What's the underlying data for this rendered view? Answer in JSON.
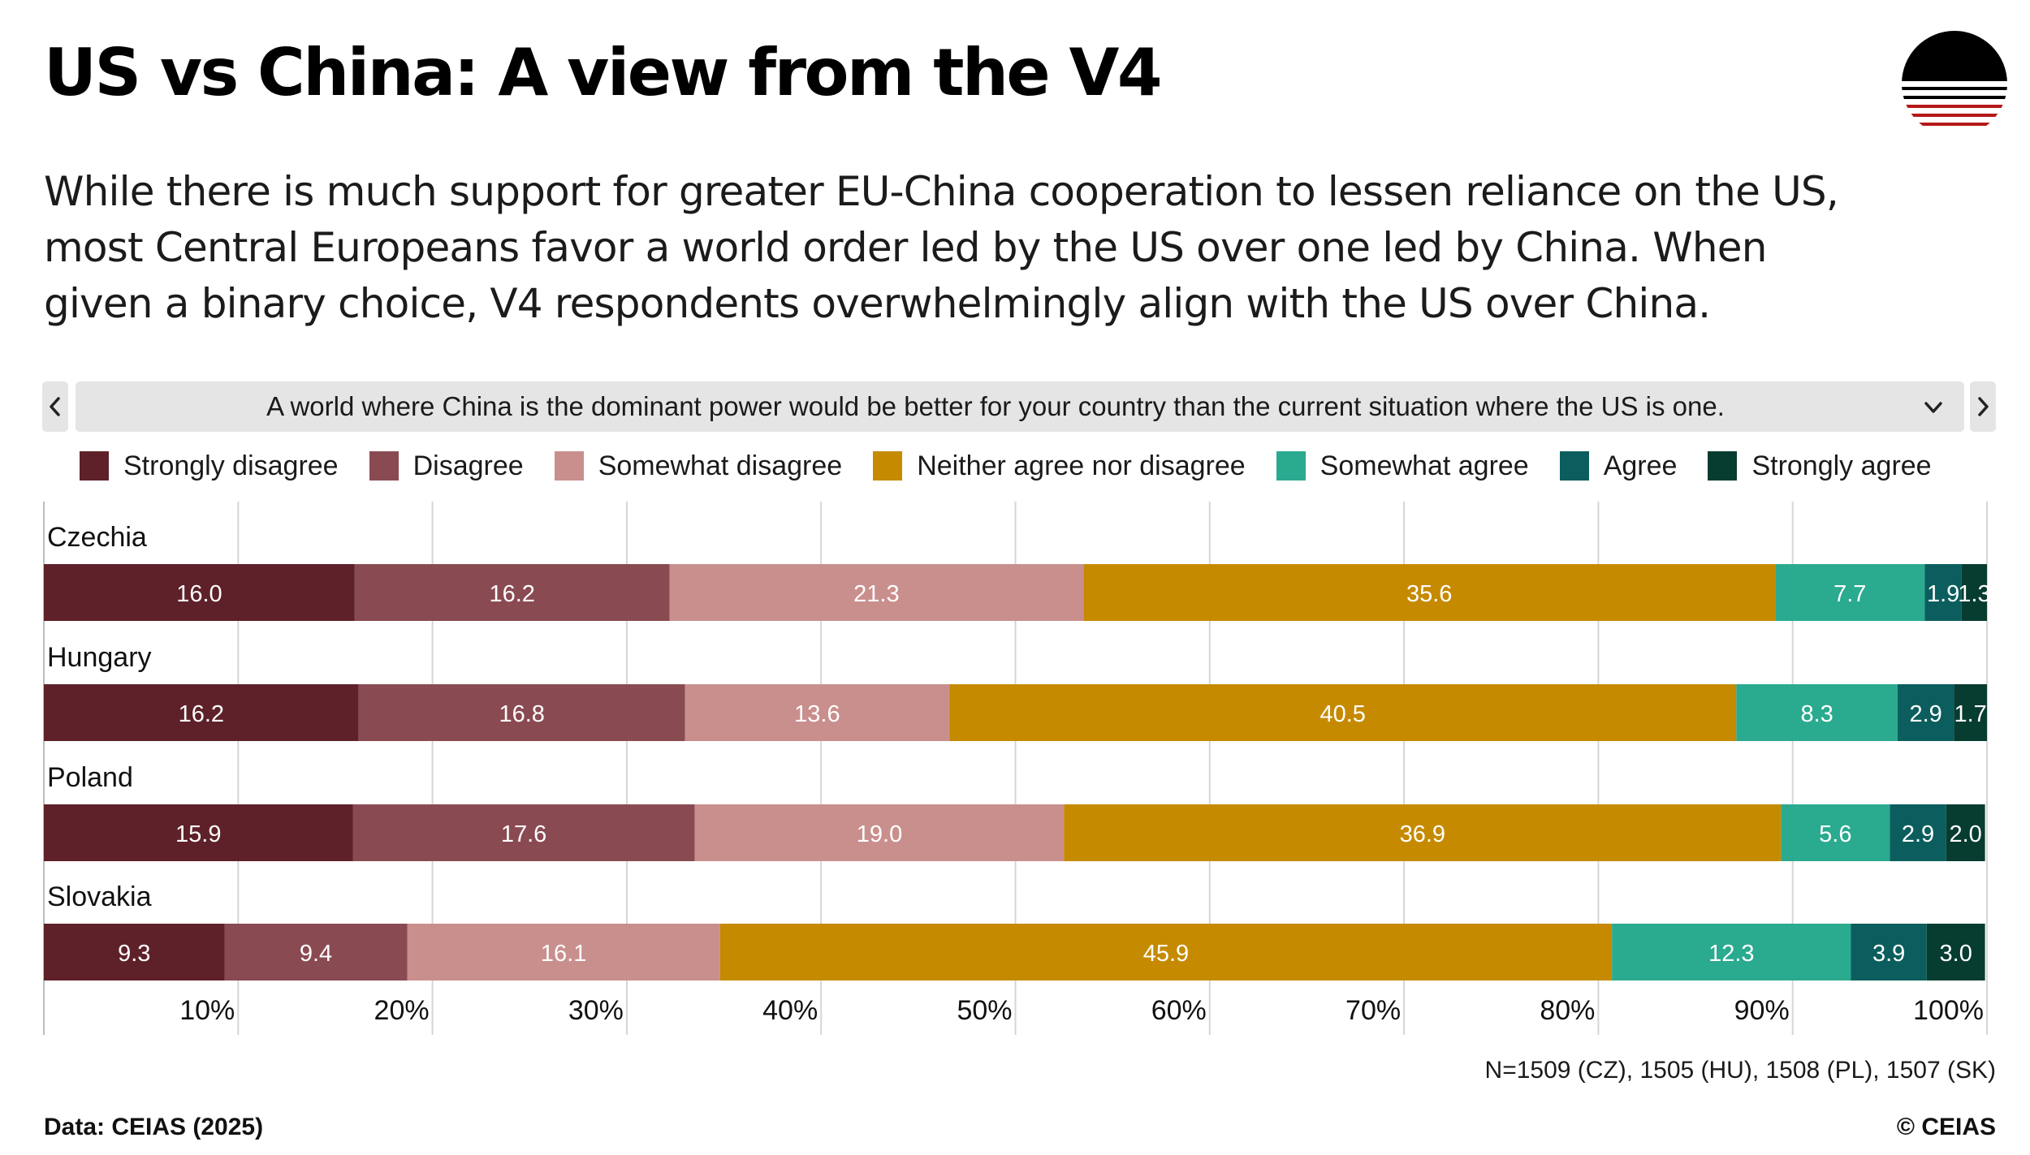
{
  "header": {
    "title": "US vs China: A view from the V4",
    "subtitle": "While there is much support for greater EU-China cooperation to lessen reliance on the US, most Central Europeans favor a world order led by the US over one led by China. When given a binary choice, V4 respondents overwhelmingly align with the US over China.",
    "logo_icon": "ceias-logo-icon"
  },
  "selector": {
    "prev_icon": "chevron-left-icon",
    "next_icon": "chevron-right-icon",
    "dropdown_icon": "chevron-down-icon",
    "selected_question": "A world where China is the dominant power would be better for your country than the current situation where the US is one."
  },
  "legend": [
    {
      "label": "Strongly disagree",
      "color": "#5e2129"
    },
    {
      "label": "Disagree",
      "color": "#8a4a52"
    },
    {
      "label": "Somewhat disagree",
      "color": "#c98f8d"
    },
    {
      "label": "Neither agree nor disagree",
      "color": "#c58a00"
    },
    {
      "label": "Somewhat agree",
      "color": "#2aaa8f"
    },
    {
      "label": "Agree",
      "color": "#0b5e5d"
    },
    {
      "label": "Strongly agree",
      "color": "#073c30"
    }
  ],
  "chart_data": {
    "type": "bar",
    "orientation": "horizontal",
    "stacked": true,
    "categories": [
      "Czechia",
      "Hungary",
      "Poland",
      "Slovakia"
    ],
    "series": [
      {
        "name": "Strongly disagree",
        "values": [
          16.0,
          16.2,
          15.9,
          9.3
        ]
      },
      {
        "name": "Disagree",
        "values": [
          16.2,
          16.8,
          17.6,
          9.4
        ]
      },
      {
        "name": "Somewhat disagree",
        "values": [
          21.3,
          13.6,
          19.0,
          16.1
        ]
      },
      {
        "name": "Neither agree nor disagree",
        "values": [
          35.6,
          40.5,
          36.9,
          45.9
        ]
      },
      {
        "name": "Somewhat agree",
        "values": [
          7.7,
          8.3,
          5.6,
          12.3
        ]
      },
      {
        "name": "Agree",
        "values": [
          1.9,
          2.9,
          2.9,
          3.9
        ]
      },
      {
        "name": "Strongly agree",
        "values": [
          1.3,
          1.7,
          2.0,
          3.0
        ]
      }
    ],
    "xlim": [
      0,
      100
    ],
    "x_ticks": [
      10,
      20,
      30,
      40,
      50,
      60,
      70,
      80,
      90,
      100
    ],
    "x_tick_labels": [
      "10%",
      "20%",
      "30%",
      "40%",
      "50%",
      "60%",
      "70%",
      "80%",
      "90%",
      "100%"
    ],
    "grid": true,
    "legend_position": "top"
  },
  "footer": {
    "sample_note": "N=1509 (CZ), 1505 (HU), 1508 (PL), 1507 (SK)",
    "source": "Data: CEIAS (2025)",
    "copyright": "© CEIAS"
  }
}
